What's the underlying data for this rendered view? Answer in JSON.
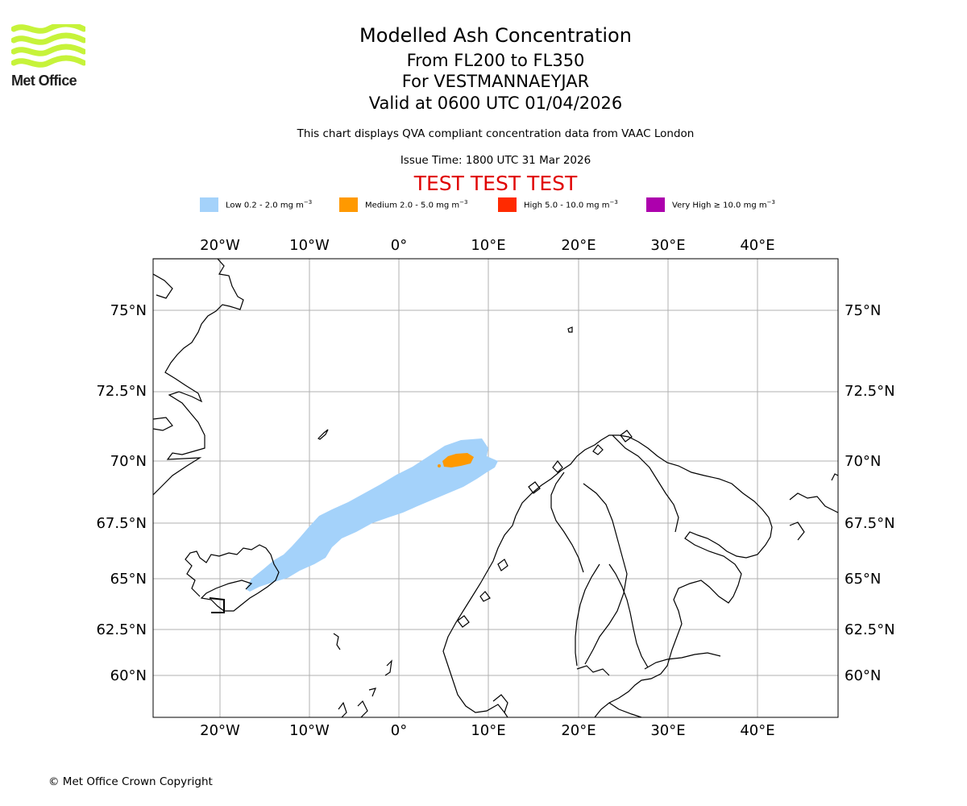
{
  "header": {
    "logo_text": "Met Office",
    "title": "Modelled Ash Concentration",
    "flight_levels": "From FL200 to FL350",
    "volcano": "For VESTMANNAEYJAR",
    "valid": "Valid at 0600 UTC 01/04/2026",
    "description": "This chart displays QVA compliant concentration data from VAAC London",
    "issue_time": "Issue Time: 1800 UTC 31 Mar 2026",
    "test_banner": "TEST TEST TEST"
  },
  "legend": [
    {
      "label": "Low 0.2 - 2.0 mg m",
      "unit_exp": "−3",
      "color": "#a4d2fa"
    },
    {
      "label": "Medium 2.0 - 5.0 mg m",
      "unit_exp": "−3",
      "color": "#ff9900"
    },
    {
      "label": "High 5.0 - 10.0 mg m",
      "unit_exp": "−3",
      "color": "#ff2a00"
    },
    {
      "label": "Very High ≥ 10.0 mg m",
      "unit_exp": "−3",
      "color": "#ad00ad"
    }
  ],
  "map": {
    "lon_labels": [
      "20°W",
      "10°W",
      "0°",
      "10°E",
      "20°E",
      "30°E",
      "40°E"
    ],
    "lat_labels": [
      "75°N",
      "72.5°N",
      "70°N",
      "67.5°N",
      "65°N",
      "62.5°N",
      "60°N"
    ],
    "ash_colors": {
      "low": "#a4d2fa",
      "medium": "#ff9900"
    }
  },
  "footer": {
    "copyright": "© Met Office Crown Copyright"
  }
}
